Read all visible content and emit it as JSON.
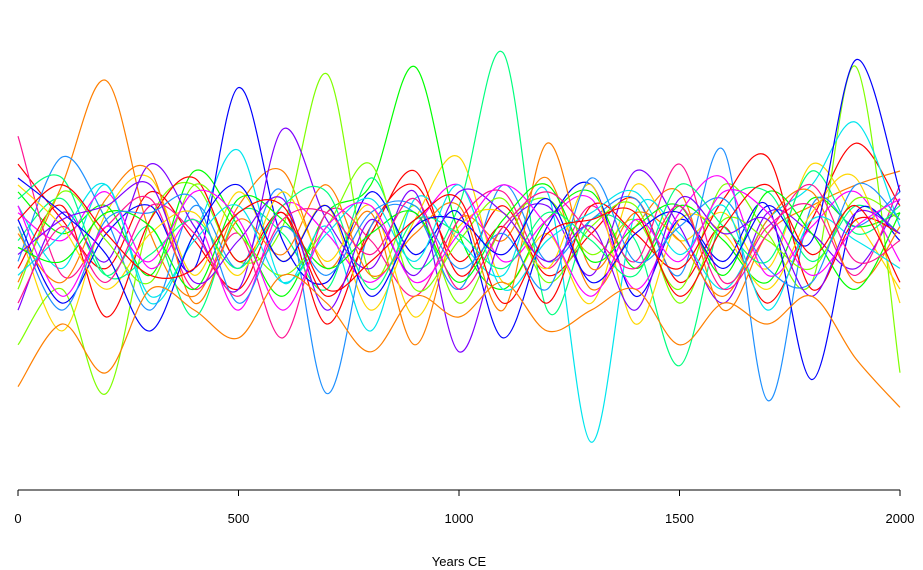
{
  "chart_data": {
    "type": "line",
    "title": "",
    "xlabel": "Years CE",
    "ylabel": "",
    "xlim": [
      0,
      2000
    ],
    "x_ticks": [
      0,
      500,
      1000,
      1500,
      2000
    ],
    "x_tick_labels": [
      "0",
      "500",
      "1000",
      "1500",
      "2000"
    ],
    "y_axis_shown": false,
    "grid": false,
    "legend": "none",
    "palette": [
      "#ff0000",
      "#ff7f00",
      "#ffd700",
      "#7fff00",
      "#00ff00",
      "#00ff7f",
      "#00e5ee",
      "#1e90ff",
      "#0000ff",
      "#7f00ff",
      "#ff00ff",
      "#ff1493"
    ],
    "series": [
      {
        "x": [
          0,
          100,
          200,
          300,
          400,
          500,
          600,
          700,
          800,
          900,
          1000,
          1100,
          1200,
          1300,
          1400,
          1500,
          1600,
          1700,
          1800,
          1900,
          2000
        ],
        "values": [
          1.2,
          0.4,
          -0.3,
          0.8,
          0.1,
          -0.6,
          0.5,
          -1.1,
          0.3,
          0.9,
          -0.2,
          0.6,
          -0.4,
          0.2,
          0.7,
          -0.5,
          0.3,
          -0.8,
          0.4,
          1.5,
          0.6
        ]
      },
      {
        "x": [
          0,
          100,
          200,
          300,
          400,
          500,
          600,
          700,
          800,
          900,
          1000,
          1100,
          1200,
          1300,
          1400,
          1500,
          1600,
          1700,
          1800,
          1900,
          2000
        ],
        "values": [
          -0.5,
          0.9,
          2.4,
          0.2,
          -0.7,
          0.6,
          1.1,
          -0.3,
          0.5,
          -1.4,
          0.4,
          0.1,
          1.0,
          -0.6,
          0.3,
          0.8,
          -0.9,
          0.2,
          0.6,
          0.9,
          1.1
        ]
      },
      {
        "x": [
          0,
          100,
          200,
          300,
          400,
          500,
          600,
          700,
          800,
          900,
          1000,
          1100,
          1200,
          1300,
          1400,
          1500,
          1600,
          1700,
          1800,
          1900,
          2000
        ],
        "values": [
          0.3,
          -1.2,
          0.5,
          1.0,
          -0.4,
          0.8,
          -0.2,
          0.6,
          -0.9,
          0.4,
          1.3,
          -0.5,
          0.2,
          -0.8,
          0.9,
          0.1,
          0.5,
          -0.3,
          1.2,
          0.4,
          -0.6
        ]
      },
      {
        "x": [
          0,
          100,
          200,
          300,
          400,
          500,
          600,
          700,
          800,
          900,
          1000,
          1100,
          1200,
          1300,
          1400,
          1500,
          1600,
          1700,
          1800,
          1900,
          2000
        ],
        "values": [
          -1.4,
          -0.6,
          -2.1,
          0.4,
          0.9,
          -0.2,
          0.3,
          2.5,
          -0.4,
          0.6,
          -0.8,
          0.3,
          0.7,
          -0.1,
          0.4,
          -0.6,
          0.9,
          0.2,
          -0.5,
          2.6,
          -1.8
        ]
      },
      {
        "x": [
          0,
          100,
          200,
          300,
          400,
          500,
          600,
          700,
          800,
          900,
          1000,
          1100,
          1200,
          1300,
          1400,
          1500,
          1600,
          1700,
          1800,
          1900,
          2000
        ],
        "values": [
          0.8,
          0.2,
          0.6,
          -0.4,
          1.1,
          0.3,
          -0.7,
          0.5,
          0.9,
          2.6,
          0.2,
          -0.6,
          0.4,
          0.8,
          -0.3,
          0.6,
          0.1,
          -0.5,
          0.7,
          0.3,
          0.5
        ]
      },
      {
        "x": [
          0,
          100,
          200,
          300,
          400,
          500,
          600,
          700,
          800,
          900,
          1000,
          1100,
          1200,
          1300,
          1400,
          1500,
          1600,
          1700,
          1800,
          1900,
          2000
        ],
        "values": [
          0.1,
          0.7,
          -0.4,
          0.3,
          -1.0,
          0.5,
          0.2,
          -0.6,
          1.0,
          -0.3,
          0.6,
          2.8,
          -0.9,
          0.4,
          0.1,
          -1.7,
          0.5,
          0.8,
          -0.2,
          0.6,
          0.2
        ]
      },
      {
        "x": [
          0,
          100,
          200,
          300,
          400,
          500,
          600,
          700,
          800,
          900,
          1000,
          1100,
          1200,
          1300,
          1400,
          1500,
          1600,
          1700,
          1800,
          1900,
          2000
        ],
        "values": [
          0.6,
          -0.3,
          0.9,
          -0.8,
          0.2,
          1.4,
          -0.5,
          0.3,
          -1.2,
          0.7,
          0.1,
          -0.4,
          0.8,
          -2.8,
          0.5,
          0.2,
          -0.6,
          0.4,
          0.9,
          1.8,
          0.3
        ]
      },
      {
        "x": [
          0,
          100,
          200,
          300,
          400,
          500,
          600,
          700,
          800,
          900,
          1000,
          1100,
          1200,
          1300,
          1400,
          1500,
          1600,
          1700,
          1800,
          1900,
          2000
        ],
        "values": [
          -0.2,
          1.3,
          0.4,
          -0.9,
          0.6,
          -0.3,
          0.8,
          -2.1,
          0.3,
          0.5,
          -0.6,
          0.9,
          -0.2,
          0.4,
          0.7,
          -0.4,
          1.4,
          -2.2,
          0.6,
          0.3,
          0.8
        ]
      },
      {
        "x": [
          0,
          100,
          200,
          300,
          400,
          500,
          600,
          700,
          800,
          900,
          1000,
          1100,
          1200,
          1300,
          1400,
          1500,
          1600,
          1700,
          1800,
          1900,
          2000
        ],
        "values": [
          0.4,
          -0.8,
          0.2,
          0.6,
          -0.3,
          2.3,
          0.1,
          -0.5,
          0.8,
          -0.1,
          0.5,
          -1.3,
          0.3,
          0.9,
          -0.7,
          0.4,
          -0.2,
          0.6,
          -1.9,
          0.5,
          0.1
        ]
      },
      {
        "x": [
          0,
          100,
          200,
          300,
          400,
          500,
          600,
          700,
          800,
          900,
          1000,
          1100,
          1200,
          1300,
          1400,
          1500,
          1600,
          1700,
          1800,
          1900,
          2000
        ],
        "values": [
          -0.9,
          0.5,
          -0.2,
          1.2,
          0.3,
          -0.6,
          1.7,
          0.4,
          -0.3,
          0.8,
          -1.5,
          0.2,
          0.6,
          -0.4,
          1.1,
          0.3,
          -0.8,
          0.5,
          0.2,
          -0.3,
          0.7
        ]
      },
      {
        "x": [
          0,
          100,
          200,
          300,
          400,
          500,
          600,
          700,
          800,
          900,
          1000,
          1100,
          1200,
          1300,
          1400,
          1500,
          1600,
          1700,
          1800,
          1900,
          2000
        ],
        "values": [
          0.5,
          0.1,
          0.8,
          -0.3,
          0.4,
          -0.9,
          0.6,
          0.2,
          -0.5,
          0.3,
          0.9,
          -0.2,
          0.4,
          0.7,
          -0.6,
          0.5,
          1.0,
          -0.4,
          0.3,
          0.8,
          -0.2
        ]
      },
      {
        "x": [
          0,
          100,
          200,
          300,
          400,
          500,
          600,
          700,
          800,
          900,
          1000,
          1100,
          1200,
          1300,
          1400,
          1500,
          1600,
          1700,
          1800,
          1900,
          2000
        ],
        "values": [
          1.6,
          -0.4,
          0.3,
          0.7,
          -0.6,
          0.2,
          -1.3,
          0.5,
          0.1,
          -0.7,
          0.4,
          0.8,
          -0.3,
          0.6,
          -0.2,
          1.2,
          -0.5,
          0.3,
          0.6,
          -0.4,
          0.9
        ]
      },
      {
        "x": [
          0,
          100,
          200,
          300,
          400,
          500,
          600,
          700,
          800,
          900,
          1000,
          1100,
          1200,
          1300,
          1400,
          1500,
          1600,
          1700,
          1800,
          1900,
          2000
        ],
        "values": [
          -0.3,
          0.6,
          -1.0,
          0.4,
          1.0,
          -0.2,
          0.5,
          -0.7,
          0.2,
          1.1,
          -0.4,
          0.3,
          -0.8,
          0.6,
          0.2,
          -0.3,
          0.7,
          1.3,
          -0.6,
          0.4,
          0.2
        ]
      },
      {
        "x": [
          0,
          100,
          200,
          300,
          400,
          500,
          600,
          700,
          800,
          900,
          1000,
          1100,
          1200,
          1300,
          1400,
          1500,
          1600,
          1700,
          1800,
          1900,
          2000
        ],
        "values": [
          0.2,
          -0.5,
          0.7,
          1.1,
          -0.8,
          0.4,
          -0.1,
          0.9,
          -0.4,
          0.2,
          0.6,
          -0.9,
          1.5,
          -0.3,
          0.5,
          0.1,
          -0.7,
          0.4,
          0.8,
          -0.5,
          0.3
        ]
      },
      {
        "x": [
          0,
          100,
          200,
          300,
          400,
          500,
          600,
          700,
          800,
          900,
          1000,
          1100,
          1200,
          1300,
          1400,
          1500,
          1600,
          1700,
          1800,
          1900,
          2000
        ],
        "values": [
          0.9,
          0.3,
          -0.6,
          0.2,
          0.5,
          -0.4,
          0.8,
          -0.2,
          0.6,
          -1.0,
          0.3,
          0.5,
          -0.3,
          0.9,
          -1.1,
          0.4,
          0.2,
          -0.6,
          0.5,
          1.0,
          -0.8
        ]
      },
      {
        "x": [
          0,
          100,
          200,
          300,
          400,
          500,
          600,
          700,
          800,
          900,
          1000,
          1100,
          1200,
          1300,
          1400,
          1500,
          1600,
          1700,
          1800,
          1900,
          2000
        ],
        "values": [
          -0.6,
          0.8,
          0.1,
          -0.5,
          0.9,
          0.2,
          -0.4,
          0.3,
          1.2,
          -0.6,
          0.1,
          0.7,
          -0.5,
          0.3,
          0.6,
          -0.8,
          0.4,
          0.1,
          -0.3,
          0.7,
          0.4
        ]
      },
      {
        "x": [
          0,
          100,
          200,
          300,
          400,
          500,
          600,
          700,
          800,
          900,
          1000,
          1100,
          1200,
          1300,
          1400,
          1500,
          1600,
          1700,
          1800,
          1900,
          2000
        ],
        "values": [
          0.0,
          -0.2,
          0.5,
          0.3,
          -0.6,
          0.7,
          0.4,
          -0.3,
          0.2,
          0.5,
          -0.5,
          0.4,
          0.9,
          -0.2,
          0.3,
          0.6,
          -0.4,
          0.8,
          0.2,
          -0.6,
          0.5
        ]
      },
      {
        "x": [
          0,
          100,
          200,
          300,
          400,
          500,
          600,
          700,
          800,
          900,
          1000,
          1100,
          1200,
          1300,
          1400,
          1500,
          1600,
          1700,
          1800,
          1900,
          2000
        ],
        "values": [
          0.7,
          1.0,
          -0.4,
          -0.1,
          0.4,
          -0.3,
          0.6,
          0.8,
          -0.6,
          0.4,
          0.2,
          -0.3,
          0.5,
          0.1,
          -0.4,
          0.9,
          0.3,
          -0.2,
          1.1,
          0.2,
          0.6
        ]
      },
      {
        "x": [
          0,
          100,
          200,
          300,
          400,
          500,
          600,
          700,
          800,
          900,
          1000,
          1100,
          1200,
          1300,
          1400,
          1500,
          1600,
          1700,
          1800,
          1900,
          2000
        ],
        "values": [
          -0.4,
          0.2,
          0.9,
          -0.7,
          0.1,
          0.6,
          -0.5,
          0.2,
          0.7,
          -0.2,
          0.9,
          -0.6,
          0.1,
          0.5,
          0.8,
          -0.1,
          0.6,
          -0.9,
          0.4,
          0.1,
          -0.3
        ]
      },
      {
        "x": [
          0,
          100,
          200,
          300,
          400,
          500,
          600,
          700,
          800,
          900,
          1000,
          1100,
          1200,
          1300,
          1400,
          1500,
          1600,
          1700,
          1800,
          1900,
          2000
        ],
        "values": [
          0.3,
          -0.9,
          0.4,
          0.5,
          0.7,
          -0.8,
          0.3,
          -0.4,
          0.5,
          0.6,
          -0.3,
          0.2,
          -0.6,
          1.0,
          -0.2,
          0.3,
          0.7,
          -0.3,
          -0.5,
          0.9,
          0.4
        ]
      },
      {
        "x": [
          0,
          100,
          200,
          300,
          400,
          500,
          600,
          700,
          800,
          900,
          1000,
          1100,
          1200,
          1300,
          1400,
          1500,
          1600,
          1700,
          1800,
          1900,
          2000
        ],
        "values": [
          1.0,
          0.5,
          -0.1,
          -1.2,
          0.2,
          0.9,
          -0.2,
          0.6,
          -0.7,
          0.3,
          0.4,
          -0.1,
          0.7,
          -0.5,
          0.2,
          0.5,
          -0.3,
          0.6,
          0.1,
          2.7,
          0.8
        ]
      },
      {
        "x": [
          0,
          100,
          200,
          300,
          400,
          500,
          600,
          700,
          800,
          900,
          1000,
          1100,
          1200,
          1300,
          1400,
          1500,
          1600,
          1700,
          1800,
          1900,
          2000
        ],
        "values": [
          -0.1,
          0.4,
          0.6,
          0.9,
          -0.5,
          0.1,
          0.7,
          -0.9,
          0.4,
          -0.4,
          0.8,
          0.5,
          -0.2,
          0.3,
          -0.9,
          0.7,
          0.2,
          0.4,
          -0.7,
          0.5,
          0.2
        ]
      },
      {
        "x": [
          0,
          100,
          200,
          300,
          400,
          500,
          600,
          700,
          800,
          900,
          1000,
          1100,
          1200,
          1300,
          1400,
          1500,
          1600,
          1700,
          1800,
          1900,
          2000
        ],
        "values": [
          0.6,
          -0.7,
          0.3,
          -0.2,
          0.8,
          0.4,
          -0.9,
          0.3,
          0.6,
          -0.5,
          0.2,
          0.9,
          0.3,
          -0.7,
          0.4,
          -0.2,
          0.8,
          0.5,
          -0.4,
          0.3,
          0.7
        ]
      },
      {
        "x": [
          0,
          100,
          200,
          300,
          400,
          500,
          600,
          700,
          800,
          900,
          1000,
          1100,
          1200,
          1300,
          1400,
          1500,
          1600,
          1700,
          1800,
          1900,
          2000
        ],
        "values": [
          -0.8,
          0.3,
          -0.5,
          0.6,
          0.2,
          -0.7,
          0.4,
          0.5,
          -0.1,
          0.7,
          -0.6,
          0.3,
          0.8,
          0.2,
          -0.3,
          0.6,
          -0.6,
          0.2,
          0.9,
          -0.2,
          0.1
        ]
      },
      {
        "x": [
          0,
          100,
          200,
          300,
          400,
          500,
          600,
          700,
          800,
          900,
          1000,
          1100,
          1200,
          1300,
          1400,
          1500,
          1600,
          1700,
          1800,
          1900,
          2000
        ],
        "values": [
          0.4,
          0.9,
          0.2,
          -0.4,
          -0.3,
          0.5,
          0.6,
          -0.6,
          -0.2,
          0.4,
          0.7,
          -0.8,
          0.2,
          0.4,
          0.5,
          -0.7,
          0.3,
          0.9,
          -0.1,
          0.6,
          -0.5
        ]
      },
      {
        "x": [
          0,
          100,
          200,
          300,
          400,
          500,
          600,
          700,
          800,
          900,
          1000,
          1100,
          1200,
          1300,
          1400,
          1500,
          1600,
          1700,
          1800,
          1900,
          2000
        ],
        "values": [
          -2.0,
          -1.1,
          -1.8,
          -0.6,
          -0.9,
          -1.3,
          -0.4,
          -0.8,
          -1.5,
          -0.7,
          -1.0,
          -0.5,
          -1.2,
          -0.9,
          -0.6,
          -1.4,
          -0.8,
          -1.1,
          -0.7,
          -1.6,
          -2.3
        ]
      }
    ]
  },
  "x_axis": {
    "label": "Years CE",
    "ticks": [
      "0",
      "500",
      "1000",
      "1500",
      "2000"
    ]
  }
}
